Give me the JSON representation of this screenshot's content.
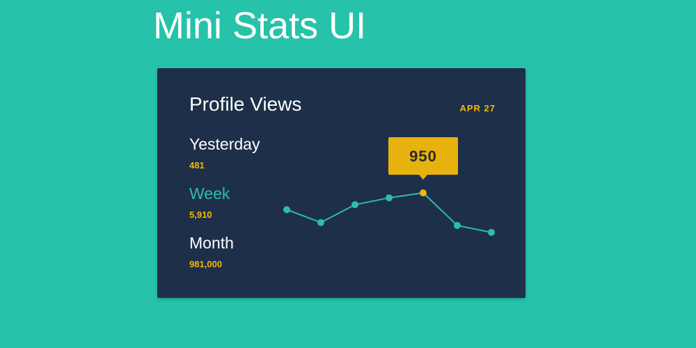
{
  "header": {
    "title": "Mini Stats UI"
  },
  "card": {
    "title": "Profile Views",
    "date": "APR 27",
    "stats": [
      {
        "label": "Yesterday",
        "value": "481"
      },
      {
        "label": "Week",
        "value": "5,910"
      },
      {
        "label": "Month",
        "value": "981,000"
      }
    ],
    "active": 1
  },
  "chart_data": {
    "type": "line",
    "values": [
      780,
      650,
      830,
      900,
      950,
      620,
      550
    ],
    "ylim": [
      500,
      1000
    ],
    "color": "#2bbfa4",
    "highlight": 4,
    "highlight_color": "#f0b90b"
  }
}
